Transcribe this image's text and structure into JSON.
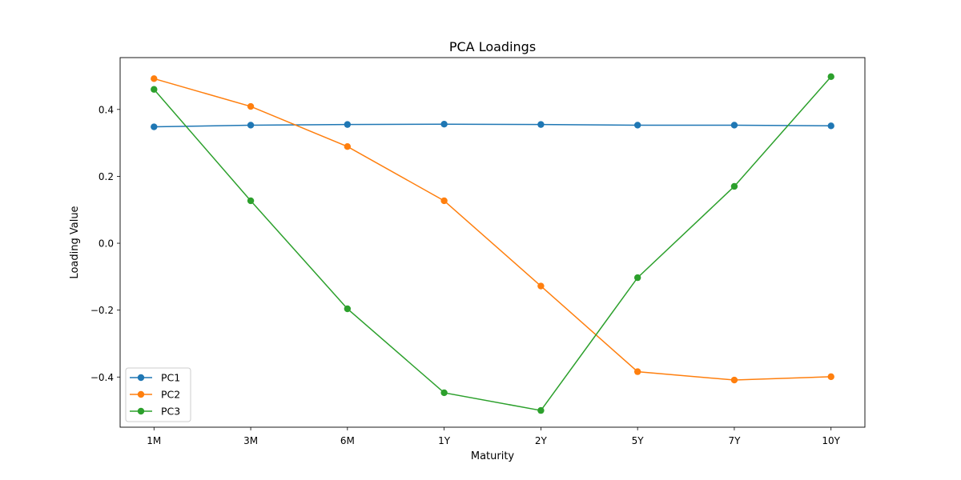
{
  "chart_data": {
    "type": "line",
    "title": "PCA Loadings",
    "xlabel": "Maturity",
    "ylabel": "Loading Value",
    "categories": [
      "1M",
      "3M",
      "6M",
      "1Y",
      "2Y",
      "5Y",
      "7Y",
      "10Y"
    ],
    "ylim": [
      -0.55,
      0.555
    ],
    "yticks": [
      -0.4,
      -0.2,
      0.0,
      0.2,
      0.4
    ],
    "ytick_labels": [
      "−0.4",
      "−0.2",
      "0.0",
      "0.2",
      "0.4"
    ],
    "grid": false,
    "legend_position": "lower-left",
    "series": [
      {
        "name": "PC1",
        "color": "#1f77b4",
        "values": [
          0.348,
          0.353,
          0.355,
          0.356,
          0.355,
          0.353,
          0.353,
          0.351
        ]
      },
      {
        "name": "PC2",
        "color": "#ff7f0e",
        "values": [
          0.492,
          0.409,
          0.289,
          0.127,
          -0.128,
          -0.384,
          -0.409,
          -0.399
        ]
      },
      {
        "name": "PC3",
        "color": "#2ca02c",
        "values": [
          0.46,
          0.127,
          -0.196,
          -0.447,
          -0.5,
          -0.103,
          0.17,
          0.498
        ]
      }
    ]
  }
}
